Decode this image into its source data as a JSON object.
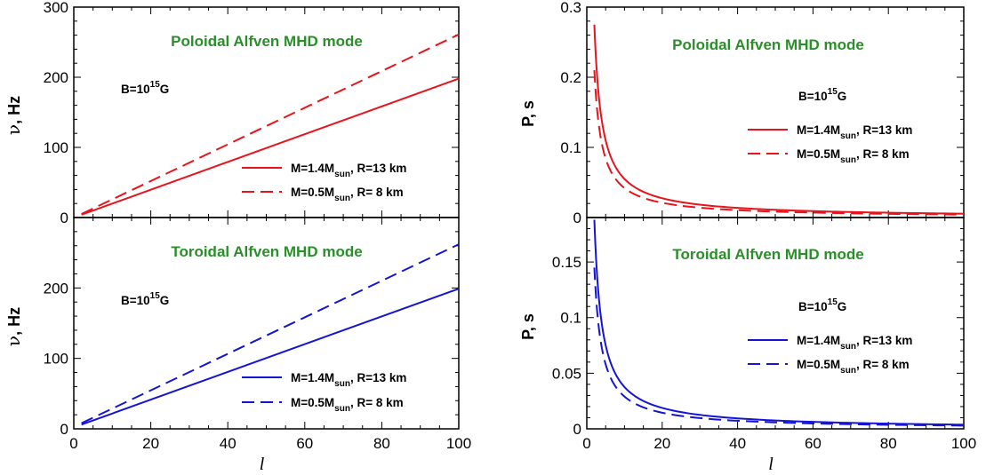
{
  "chart_data": [
    {
      "type": "line",
      "panel": "left-top",
      "title": "Poloidal Alfven MHD mode",
      "annotation": {
        "base": "B=10",
        "sup": "15",
        "tail": "G"
      },
      "ylabel": {
        "symbol": "ν",
        "rest": ", Hz"
      },
      "xlabel": "",
      "xlim": [
        0,
        100
      ],
      "ylim": [
        0,
        300
      ],
      "xticks": [
        0,
        20,
        40,
        60,
        80,
        100
      ],
      "yticks": [
        0,
        100,
        200,
        300
      ],
      "x": [
        2,
        100
      ],
      "color": "#e8141b",
      "title_color": "#2a8f2a",
      "series": [
        {
          "name": "M=1.4Msun, R=13 km",
          "legend_parts": [
            "M=1.4M",
            "sun",
            ", R=13 km"
          ],
          "dash": "solid",
          "law": "linear",
          "y": [
            4,
            198
          ]
        },
        {
          "name": "M=0.5Msun, R= 8 km",
          "legend_parts": [
            "M=0.5M",
            "sun",
            ", R= 8  km"
          ],
          "dash": "dashed",
          "law": "linear",
          "y": [
            5,
            261
          ]
        }
      ]
    },
    {
      "type": "line",
      "panel": "left-bottom",
      "title": "Toroidal Alfven MHD mode",
      "annotation": {
        "base": "B=10",
        "sup": "15",
        "tail": "G"
      },
      "ylabel": {
        "symbol": "ν",
        "rest": ", Hz"
      },
      "xlabel": "l",
      "xlim": [
        0,
        100
      ],
      "ylim": [
        0,
        300
      ],
      "xticks": [
        0,
        20,
        40,
        60,
        80,
        100
      ],
      "yticks": [
        0,
        100,
        200
      ],
      "x": [
        2,
        100
      ],
      "color": "#1414d8",
      "title_color": "#2a8f2a",
      "series": [
        {
          "name": "M=1.4Msun, R=13 km",
          "legend_parts": [
            "M=1.4M",
            "sun",
            ", R=13 km"
          ],
          "dash": "solid",
          "law": "linear",
          "y": [
            6,
            199
          ]
        },
        {
          "name": "M=0.5Msun, R= 8 km",
          "legend_parts": [
            "M=0.5M",
            "sun",
            ", R= 8  km"
          ],
          "dash": "dashed",
          "law": "linear",
          "y": [
            8,
            262
          ]
        }
      ]
    },
    {
      "type": "line",
      "panel": "right-top",
      "title": "Poloidal Alfven MHD mode",
      "annotation": {
        "base": "B=10",
        "sup": "15",
        "tail": "G"
      },
      "ylabel": {
        "symbol": "",
        "rest": "P, s"
      },
      "xlabel": "",
      "xlim": [
        0,
        100
      ],
      "ylim": [
        0,
        0.3
      ],
      "xticks": [
        0,
        20,
        40,
        60,
        80,
        100
      ],
      "yticks": [
        0,
        0.1,
        0.2,
        0.3
      ],
      "x": [
        2,
        100
      ],
      "color": "#e8141b",
      "title_color": "#2a8f2a",
      "series": [
        {
          "name": "M=1.4Msun, R=13 km",
          "legend_parts": [
            "M=1.4M",
            "sun",
            ", R=13 km"
          ],
          "dash": "solid",
          "law": "inverse",
          "y": [
            0.275,
            0.0055
          ]
        },
        {
          "name": "M=0.5Msun, R= 8 km",
          "legend_parts": [
            "M=0.5M",
            "sun",
            ", R= 8  km"
          ],
          "dash": "dashed",
          "law": "inverse",
          "y": [
            0.21,
            0.0042
          ]
        }
      ]
    },
    {
      "type": "line",
      "panel": "right-bottom",
      "title": "Toroidal Alfven MHD mode",
      "annotation": {
        "base": "B=10",
        "sup": "15",
        "tail": "G"
      },
      "ylabel": {
        "symbol": "",
        "rest": "P, s"
      },
      "xlabel": "l",
      "xlim": [
        0,
        100
      ],
      "ylim": [
        0,
        0.19
      ],
      "xticks": [
        0,
        20,
        40,
        60,
        80,
        100
      ],
      "yticks": [
        0,
        0.05,
        0.1,
        0.15
      ],
      "x": [
        2,
        100
      ],
      "color": "#1414d8",
      "title_color": "#2a8f2a",
      "series": [
        {
          "name": "M=1.4Msun, R=13 km",
          "legend_parts": [
            "M=1.4M",
            "sun",
            ", R=13 km"
          ],
          "dash": "solid",
          "law": "inverse",
          "y": [
            0.188,
            0.005
          ]
        },
        {
          "name": "M=0.5Msun, R= 8 km",
          "legend_parts": [
            "M=0.5M",
            "sun",
            ", R= 8  km"
          ],
          "dash": "dashed",
          "law": "inverse",
          "y": [
            0.145,
            0.0038
          ]
        }
      ]
    }
  ]
}
